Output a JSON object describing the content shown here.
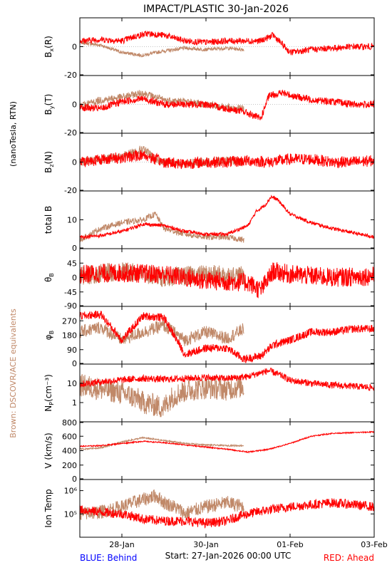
{
  "title": "IMPACT/PLASTIC   30-Jan-2026",
  "left_label_top": "(nanoTesla, RTN)",
  "left_label_bottom": "Brown: DSCOVR/ACE equivalents",
  "footer": {
    "left": "BLUE: Behind",
    "center": "Start: 27-Jan-2026 00:00 UTC",
    "right": "RED: Ahead"
  },
  "colors": {
    "ahead": "#ff0000",
    "dscovr": "#c08868",
    "behind": "#0000ff"
  },
  "chart_data": {
    "type": "line",
    "x_unit": "days since start",
    "xlim": [
      0,
      7
    ],
    "x_ticks": [
      {
        "x": 1,
        "label": "28-Jan"
      },
      {
        "x": 3,
        "label": "30-Jan"
      },
      {
        "x": 5,
        "label": "01-Feb"
      },
      {
        "x": 7,
        "label": "03-Feb"
      }
    ],
    "panels": [
      {
        "name": "bx",
        "ylabel": "B",
        "ysub": "x",
        "ysuffix": "(R)",
        "scale": "linear",
        "ylim": [
          -20,
          20
        ],
        "yticks": [
          0,
          -20
        ],
        "zero_line": true,
        "series": [
          {
            "name": "RED: Ahead",
            "color": "#ff0000",
            "noise": 2.2,
            "x": [
              0,
              0.5,
              1,
              1.3,
              1.6,
              2,
              2.5,
              3,
              3.5,
              3.9,
              4.3,
              4.6,
              5,
              5.5,
              6,
              6.5,
              7
            ],
            "y": [
              4,
              5,
              4,
              7,
              9,
              8,
              4,
              3,
              4,
              4,
              4,
              8,
              -4,
              -2,
              -1,
              0,
              0
            ]
          },
          {
            "name": "DSCOVR/ACE",
            "color": "#c08868",
            "noise": 1.2,
            "x": [
              0,
              0.5,
              1,
              1.5,
              2,
              2.5,
              3,
              3.5,
              3.9
            ],
            "y": [
              3,
              1,
              -4,
              -6,
              -3,
              -1,
              -2,
              -1,
              -2
            ]
          }
        ]
      },
      {
        "name": "by",
        "ylabel": "B",
        "ysub": "y",
        "ysuffix": "(T)",
        "scale": "linear",
        "ylim": [
          -20,
          20
        ],
        "yticks": [
          0,
          -20
        ],
        "zero_line": true,
        "series": [
          {
            "name": "RED: Ahead",
            "color": "#ff0000",
            "noise": 2.5,
            "x": [
              0,
              0.5,
              1,
              1.5,
              2,
              2.5,
              3,
              3.5,
              3.9,
              4.3,
              4.5,
              4.8,
              5.2,
              5.6,
              6,
              6.5,
              7
            ],
            "y": [
              -2,
              -3,
              2,
              4,
              0,
              0,
              0,
              -3,
              -5,
              -10,
              6,
              8,
              5,
              3,
              2,
              0,
              0
            ]
          },
          {
            "name": "DSCOVR/ACE",
            "color": "#c08868",
            "noise": 2.5,
            "x": [
              0,
              0.5,
              1,
              1.5,
              2,
              2.5,
              3,
              3.5,
              3.9
            ],
            "y": [
              -1,
              3,
              5,
              8,
              3,
              2,
              0,
              -2,
              -3
            ]
          }
        ]
      },
      {
        "name": "bz",
        "ylabel": "B",
        "ysub": "z",
        "ysuffix": "(N)",
        "scale": "linear",
        "ylim": [
          -20,
          20
        ],
        "yticks": [
          0,
          -20
        ],
        "zero_line": true,
        "series": [
          {
            "name": "RED: Ahead",
            "color": "#ff0000",
            "noise": 4,
            "x": [
              0,
              0.5,
              1,
              1.5,
              2,
              2.5,
              3,
              3.5,
              4,
              4.5,
              5,
              5.5,
              6,
              6.5,
              7
            ],
            "y": [
              0,
              2,
              3,
              5,
              0,
              -1,
              0,
              0,
              1,
              0,
              2,
              2,
              0,
              0,
              1
            ]
          },
          {
            "name": "DSCOVR/ACE",
            "color": "#c08868",
            "noise": 3,
            "x": [
              0,
              0.5,
              1,
              1.5,
              1.8,
              2,
              2.5,
              3,
              3.5,
              3.9
            ],
            "y": [
              0,
              2,
              4,
              9,
              2,
              0,
              -1,
              0,
              1,
              0
            ]
          }
        ]
      },
      {
        "name": "total-b",
        "ylabel": "total B",
        "ysub": "",
        "ysuffix": "",
        "scale": "linear",
        "ylim": [
          0,
          20
        ],
        "yticks": [
          10,
          0
        ],
        "zero_line": false,
        "series": [
          {
            "name": "RED: Ahead",
            "color": "#ff0000",
            "noise": 0.6,
            "x": [
              0,
              0.5,
              1,
              1.5,
              2,
              2.5,
              3,
              3.5,
              4,
              4.2,
              4.4,
              4.55,
              4.7,
              5,
              5.5,
              6,
              6.5,
              7
            ],
            "y": [
              4,
              4.5,
              6,
              8.5,
              8,
              6,
              5,
              5,
              8,
              13,
              15,
              18,
              17,
              12,
              9,
              7,
              5.5,
              4
            ]
          },
          {
            "name": "DSCOVR/ACE",
            "color": "#c08868",
            "noise": 1,
            "x": [
              0,
              0.5,
              1,
              1.5,
              1.8,
              2,
              2.5,
              3,
              3.5,
              3.9
            ],
            "y": [
              3,
              7,
              9,
              10,
              12,
              7,
              5,
              4,
              4,
              3
            ]
          }
        ]
      },
      {
        "name": "theta-b",
        "ylabel": "θ",
        "ysub": "B",
        "ysuffix": "",
        "scale": "linear",
        "ylim": [
          -90,
          90
        ],
        "yticks": [
          45,
          0,
          -45,
          -90
        ],
        "zero_line": false,
        "series": [
          {
            "name": "RED: Ahead",
            "color": "#ff0000",
            "noise": 30,
            "x": [
              0,
              1,
              2,
              3,
              4,
              4.3,
              4.6,
              5,
              6,
              7
            ],
            "y": [
              10,
              15,
              10,
              -10,
              -15,
              -40,
              20,
              10,
              0,
              5
            ]
          },
          {
            "name": "DSCOVR/ACE",
            "color": "#c08868",
            "noise": 30,
            "x": [
              0,
              1,
              2,
              3,
              3.9
            ],
            "y": [
              5,
              20,
              0,
              10,
              5
            ]
          }
        ]
      },
      {
        "name": "phi-b",
        "ylabel": "φ",
        "ysub": "B",
        "ysuffix": "",
        "scale": "linear",
        "ylim": [
          0,
          360
        ],
        "yticks": [
          270,
          180,
          90,
          0
        ],
        "zero_line": false,
        "series": [
          {
            "name": "RED: Ahead",
            "color": "#ff0000",
            "noise": 25,
            "x": [
              0,
              0.5,
              1,
              1.5,
              2,
              2.5,
              3,
              3.5,
              3.9,
              4.3,
              4.6,
              5,
              5.5,
              6,
              6.5,
              7
            ],
            "y": [
              300,
              310,
              150,
              300,
              290,
              60,
              100,
              100,
              30,
              50,
              120,
              150,
              200,
              200,
              220,
              220
            ]
          },
          {
            "name": "DSCOVR/ACE",
            "color": "#c08868",
            "noise": 40,
            "x": [
              0,
              0.5,
              1,
              1.5,
              2,
              2.5,
              3,
              3.5,
              3.9
            ],
            "y": [
              200,
              230,
              150,
              200,
              240,
              150,
              200,
              160,
              220
            ]
          }
        ]
      },
      {
        "name": "density",
        "ylabel": "N",
        "ysub": "P",
        "ysuffix": "(cm⁻³)",
        "scale": "log",
        "ylim": [
          0.1,
          100
        ],
        "yticks": [
          10,
          1
        ],
        "zero_line": false,
        "series": [
          {
            "name": "RED: Ahead",
            "color": "#ff0000",
            "noise": 1.5,
            "x": [
              0,
              0.5,
              1,
              1.5,
              2,
              2.5,
              3,
              3.5,
              4,
              4.3,
              4.5,
              4.7,
              5,
              5.5,
              6,
              6.5,
              7
            ],
            "y": [
              9,
              12,
              15,
              18,
              16,
              18,
              20,
              18,
              22,
              35,
              45,
              30,
              14,
              10,
              8,
              7,
              6
            ]
          },
          {
            "name": "DSCOVR/ACE",
            "color": "#c08868",
            "noise": 4,
            "x": [
              0,
              0.5,
              1,
              1.5,
              2,
              2.5,
              3,
              3.5,
              3.9
            ],
            "y": [
              8,
              5,
              3,
              1,
              0.5,
              4,
              6,
              5,
              7
            ]
          }
        ]
      },
      {
        "name": "speed",
        "ylabel": "V (km/s)",
        "ysub": "",
        "ysuffix": "",
        "scale": "linear",
        "ylim": [
          0,
          800
        ],
        "yticks": [
          800,
          600,
          400,
          200,
          0
        ],
        "zero_line": false,
        "series": [
          {
            "name": "RED: Ahead",
            "color": "#ff0000",
            "noise": 8,
            "x": [
              0,
              0.5,
              1,
              1.5,
              2,
              2.5,
              3,
              3.5,
              4,
              4.5,
              5,
              5.5,
              6,
              6.5,
              7
            ],
            "y": [
              460,
              470,
              500,
              530,
              510,
              480,
              450,
              420,
              380,
              420,
              500,
              600,
              640,
              650,
              660
            ]
          },
          {
            "name": "DSCOVR/ACE",
            "color": "#c08868",
            "noise": 10,
            "x": [
              0,
              0.5,
              1,
              1.5,
              2,
              2.5,
              3,
              3.5,
              3.9
            ],
            "y": [
              420,
              440,
              520,
              580,
              540,
              500,
              480,
              470,
              470
            ]
          }
        ]
      },
      {
        "name": "ion-temp",
        "ylabel": "Ion Temp",
        "ysub": "",
        "ysuffix": "",
        "scale": "log",
        "ylim": [
          10000,
          3000000
        ],
        "yticks": [
          1000000,
          100000
        ],
        "tick_labels": [
          "10⁶",
          "10⁵"
        ],
        "zero_line": false,
        "series": [
          {
            "name": "RED: Ahead",
            "color": "#ff0000",
            "noise": 1.6,
            "x": [
              0,
              0.5,
              1,
              1.5,
              2,
              2.5,
              3,
              3.5,
              4,
              4.5,
              5,
              5.5,
              6,
              6.5,
              7
            ],
            "y": [
              150000,
              120000,
              100000,
              60000,
              50000,
              50000,
              40000,
              50000,
              100000,
              150000,
              200000,
              250000,
              300000,
              250000,
              200000
            ]
          },
          {
            "name": "DSCOVR/ACE",
            "color": "#c08868",
            "noise": 2,
            "x": [
              0,
              0.5,
              1,
              1.5,
              1.8,
              2,
              2.5,
              3,
              3.5,
              3.9
            ],
            "y": [
              100000,
              120000,
              200000,
              400000,
              600000,
              300000,
              100000,
              200000,
              300000,
              200000
            ]
          }
        ]
      }
    ]
  }
}
